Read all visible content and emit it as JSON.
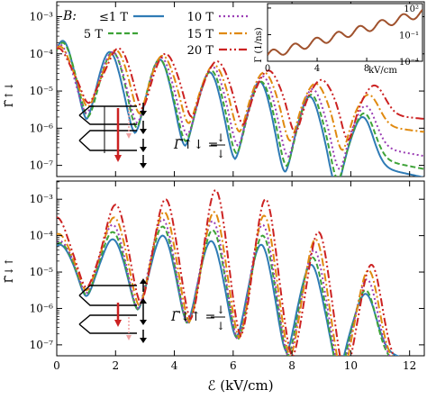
{
  "chart_data": [
    {
      "type": "line",
      "panel": "top",
      "ylabel": "Γ̃↑↓",
      "yscale": "log",
      "ylim_exp": [
        -7.3,
        -2.6
      ],
      "xlim": [
        0,
        12.5
      ],
      "x_ticks": [
        "0",
        "2",
        "4",
        "6",
        "8",
        "10",
        "12"
      ],
      "y_ticks": [
        {
          "exp": -7,
          "label": "10⁻⁷"
        },
        {
          "exp": -6,
          "label": "10⁻⁶"
        },
        {
          "exp": -5,
          "label": "10⁻⁵"
        },
        {
          "exp": -4,
          "label": "10⁻⁴"
        },
        {
          "exp": -3,
          "label": "10⁻³"
        }
      ],
      "legend": {
        "prefix": "B:",
        "entries": [
          "≤1 T",
          "5 T",
          "10 T",
          "15 T",
          "20 T"
        ]
      },
      "series": [
        {
          "name": "≤1 T",
          "color": "#2f7bb5",
          "dash": "",
          "peaks": [
            [
              0.2,
              -3.65
            ],
            [
              1.8,
              -3.95
            ],
            [
              3.5,
              -4.15
            ],
            [
              5.2,
              -4.5
            ],
            [
              6.9,
              -4.75
            ],
            [
              8.6,
              -5.15
            ],
            [
              10.4,
              -5.7
            ]
          ],
          "floor": -5.2,
          "floor_slope": -0.17
        },
        {
          "name": "5 T",
          "color": "#3ea338",
          "dash": "6,3",
          "peaks": [
            [
              0.2,
              -3.7
            ],
            [
              1.9,
              -3.95
            ],
            [
              3.5,
              -4.15
            ],
            [
              5.25,
              -4.45
            ],
            [
              6.95,
              -4.75
            ],
            [
              8.65,
              -5.1
            ],
            [
              10.45,
              -5.6
            ]
          ],
          "floor": -5.1,
          "floor_slope": -0.16
        },
        {
          "name": "10 T",
          "color": "#9b3fb5",
          "dash": "2,3",
          "peaks": [
            [
              0.1,
              -3.75
            ],
            [
              1.9,
              -3.95
            ],
            [
              3.55,
              -4.1
            ],
            [
              5.3,
              -4.35
            ],
            [
              7.0,
              -4.6
            ],
            [
              8.7,
              -4.95
            ],
            [
              10.5,
              -5.4
            ]
          ],
          "floor": -5.0,
          "floor_slope": -0.14
        },
        {
          "name": "15 T",
          "color": "#e08a10",
          "dash": "9,3,2,3",
          "peaks": [
            [
              0.1,
              -3.8
            ],
            [
              2.0,
              -3.9
            ],
            [
              3.6,
              -4.05
            ],
            [
              5.35,
              -4.3
            ],
            [
              7.05,
              -4.5
            ],
            [
              8.8,
              -4.8
            ],
            [
              10.6,
              -5.1
            ]
          ],
          "floor": -4.85,
          "floor_slope": -0.1
        },
        {
          "name": "20 T",
          "color": "#cc2222",
          "dash": "9,3,2,3,2,3",
          "peaks": [
            [
              0.05,
              -3.85
            ],
            [
              2.1,
              -3.85
            ],
            [
              3.7,
              -4.0
            ],
            [
              5.45,
              -4.2
            ],
            [
              7.2,
              -4.45
            ],
            [
              9.0,
              -4.7
            ],
            [
              10.8,
              -4.85
            ]
          ],
          "floor": -4.75,
          "floor_slope": -0.08
        }
      ],
      "inset": {
        "ylabel": "Γ (1/ns)",
        "xlabel": "kV/cm",
        "x_ticks": [
          "0",
          "4",
          "8"
        ],
        "y_ticks": [
          "10⁻⁴",
          "10⁻¹",
          "10²"
        ],
        "xlim": [
          0,
          12.5
        ],
        "ylim_exp": [
          -4,
          2.5
        ]
      },
      "equation": {
        "lhs": "Γ̃↑↓ =",
        "numerator": "↓",
        "denominator": "↓"
      }
    },
    {
      "type": "line",
      "panel": "bottom",
      "ylabel": "Γ̃↓↑",
      "xlabel": "ℰ (kV/cm)",
      "yscale": "log",
      "ylim_exp": [
        -7.3,
        -2.5
      ],
      "xlim": [
        0,
        12.5
      ],
      "x_ticks": [
        "0",
        "2",
        "4",
        "6",
        "8",
        "10",
        "12"
      ],
      "y_ticks": [
        {
          "exp": -7,
          "label": "10⁻⁷"
        },
        {
          "exp": -6,
          "label": "10⁻⁶"
        },
        {
          "exp": -5,
          "label": "10⁻⁵"
        },
        {
          "exp": -4,
          "label": "10⁻⁴"
        },
        {
          "exp": -3,
          "label": "10⁻³"
        }
      ],
      "series": [
        {
          "name": "≤1 T",
          "color": "#2f7bb5",
          "dash": "",
          "peaks": [
            [
              0.1,
              -4.25
            ],
            [
              1.9,
              -4.1
            ],
            [
              3.6,
              -4.0
            ],
            [
              5.25,
              -4.15
            ],
            [
              6.95,
              -4.25
            ],
            [
              8.65,
              -4.8
            ],
            [
              10.5,
              -5.6
            ]
          ],
          "floor": -5.0,
          "floor_slope": -0.2
        },
        {
          "name": "5 T",
          "color": "#3ea338",
          "dash": "6,3",
          "peaks": [
            [
              0.1,
              -4.2
            ],
            [
              1.9,
              -3.9
            ],
            [
              3.6,
              -3.75
            ],
            [
              5.3,
              -3.85
            ],
            [
              7.0,
              -4.0
            ],
            [
              8.7,
              -4.6
            ],
            [
              10.5,
              -5.5
            ]
          ],
          "floor": -4.95,
          "floor_slope": -0.22
        },
        {
          "name": "10 T",
          "color": "#9b3fb5",
          "dash": "2,3",
          "peaks": [
            [
              0.1,
              -4.15
            ],
            [
              1.9,
              -3.7
            ],
            [
              3.6,
              -3.55
            ],
            [
              5.3,
              -3.6
            ],
            [
              7.0,
              -3.7
            ],
            [
              8.75,
              -4.4
            ],
            [
              10.55,
              -5.2
            ]
          ],
          "floor": -4.9,
          "floor_slope": -0.23
        },
        {
          "name": "15 T",
          "color": "#e08a10",
          "dash": "9,3,2,3",
          "peaks": [
            [
              0.05,
              -3.95
            ],
            [
              1.95,
              -3.5
            ],
            [
              3.65,
              -3.35
            ],
            [
              5.35,
              -3.35
            ],
            [
              7.05,
              -3.45
            ],
            [
              8.8,
              -4.1
            ],
            [
              10.6,
              -4.95
            ]
          ],
          "floor": -4.8,
          "floor_slope": -0.24
        },
        {
          "name": "20 T",
          "color": "#cc2222",
          "dash": "9,3,2,3,2,3",
          "peaks": [
            [
              0.0,
              -3.5
            ],
            [
              2.0,
              -3.15
            ],
            [
              3.7,
              -3.0
            ],
            [
              5.4,
              -2.75
            ],
            [
              7.1,
              -3.0
            ],
            [
              8.9,
              -3.9
            ],
            [
              10.7,
              -4.8
            ]
          ],
          "floor": -4.7,
          "floor_slope": -0.25
        }
      ],
      "equation": {
        "lhs": "Γ̃↓↑ =",
        "numerator": "↓",
        "denominator": "↓"
      }
    }
  ]
}
